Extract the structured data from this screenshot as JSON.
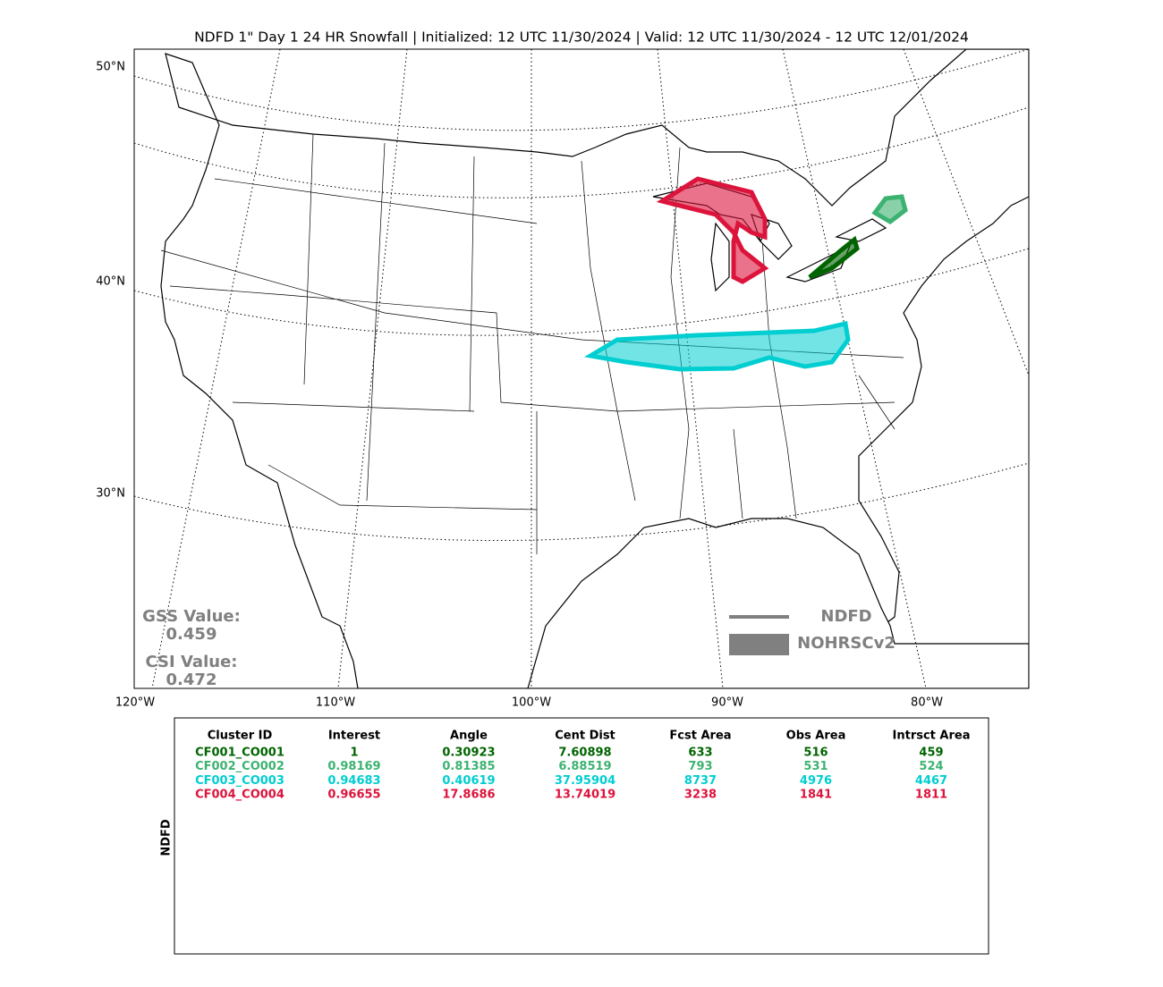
{
  "title": "NDFD 1\" Day 1 24 HR Snowfall | Initialized: 12 UTC 11/30/2024 | Valid: 12 UTC 11/30/2024 - 12 UTC 12/01/2024",
  "map": {
    "lat_labels": [
      "50°N",
      "40°N",
      "30°N"
    ],
    "lon_labels": [
      "120°W",
      "110°W",
      "100°W",
      "90°W",
      "80°W"
    ],
    "gss_label": "GSS Value:",
    "gss_value": "0.459",
    "csi_label": "CSI Value:",
    "csi_value": "0.472",
    "legend": [
      "NDFD",
      "NOHRSCv2"
    ]
  },
  "table": {
    "side_label": "NDFD",
    "columns": [
      "Cluster ID",
      "Interest",
      "Angle",
      "Cent Dist",
      "Fcst Area",
      "Obs Area",
      "Intrsct Area"
    ],
    "row_colors": [
      "#006400",
      "#3cb371",
      "#00ced1",
      "#dc143c"
    ],
    "rows": [
      [
        "CF001_CO001",
        "1",
        "0.30923",
        "7.60898",
        "633",
        "516",
        "459"
      ],
      [
        "CF002_CO002",
        "0.98169",
        "0.81385",
        "6.88519",
        "793",
        "531",
        "524"
      ],
      [
        "CF003_CO003",
        "0.94683",
        "0.40619",
        "37.95904",
        "8737",
        "4976",
        "4467"
      ],
      [
        "CF004_CO004",
        "0.96655",
        "17.8686",
        "13.74019",
        "3238",
        "1841",
        "1811"
      ]
    ]
  }
}
